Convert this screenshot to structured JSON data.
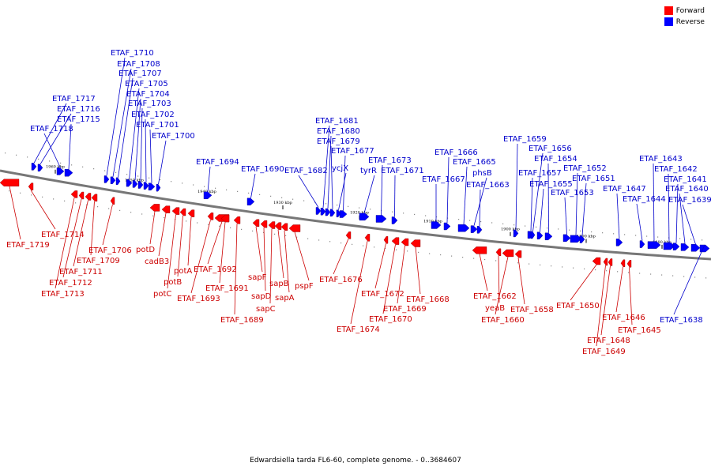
{
  "caption": "Edwardsiella tarda FL6-60, complete genome. - 0..3684607",
  "legend": [
    {
      "label": "Forward",
      "color": "#ff0000"
    },
    {
      "label": "Reverse",
      "color": "#0000ff"
    }
  ],
  "colors": {
    "forward_text": "#cc0000",
    "reverse_text": "#0000cc",
    "backbone": "#777777"
  },
  "ticks": [
    "1960 kbp",
    "1950 kbp",
    "1940 kbp",
    "1930 kbp",
    "1920 kbp",
    "1910 kbp",
    "1900 kbp",
    "1890 kbp",
    "1880 kbp"
  ],
  "forward_genes": [
    "ETAF_1719",
    "ETAF_1714",
    "ETAF_1713",
    "ETAF_1712",
    "ETAF_1711",
    "ETAF_1709",
    "ETAF_1706",
    "potD",
    "cadB3",
    "potC",
    "potB",
    "potA",
    "ETAF_1693",
    "ETAF_1692",
    "ETAF_1691",
    "ETAF_1689",
    "sapF",
    "sapD",
    "sapC",
    "sapB",
    "sapA",
    "pspF",
    "ETAF_1676",
    "ETAF_1674",
    "ETAF_1672",
    "ETAF_1670",
    "ETAF_1669",
    "ETAF_1668",
    "ETAF_1662",
    "yeaB",
    "ETAF_1660",
    "ETAF_1658",
    "ETAF_1650",
    "ETAF_1649",
    "ETAF_1648",
    "ETAF_1646",
    "ETAF_1645"
  ],
  "reverse_genes": [
    "ETAF_1718",
    "ETAF_1717",
    "ETAF_1716",
    "ETAF_1715",
    "ETAF_1710",
    "ETAF_1708",
    "ETAF_1707",
    "ETAF_1705",
    "ETAF_1704",
    "ETAF_1703",
    "ETAF_1702",
    "ETAF_1701",
    "ETAF_1700",
    "ETAF_1694",
    "ETAF_1690",
    "ETAF_1682",
    "ETAF_1681",
    "ETAF_1680",
    "ETAF_1679",
    "ETAF_1677",
    "ycjX",
    "tyrR",
    "ETAF_1673",
    "ETAF_1671",
    "ETAF_1667",
    "ETAF_1666",
    "ETAF_1665",
    "phsB",
    "ETAF_1663",
    "ETAF_1659",
    "ETAF_1657",
    "ETAF_1656",
    "ETAF_1655",
    "ETAF_1654",
    "ETAF_1653",
    "ETAF_1652",
    "ETAF_1651",
    "ETAF_1647",
    "ETAF_1644",
    "ETAF_1643",
    "ETAF_1642",
    "ETAF_1641",
    "ETAF_1640",
    "ETAF_1639",
    "ETAF_1638"
  ]
}
